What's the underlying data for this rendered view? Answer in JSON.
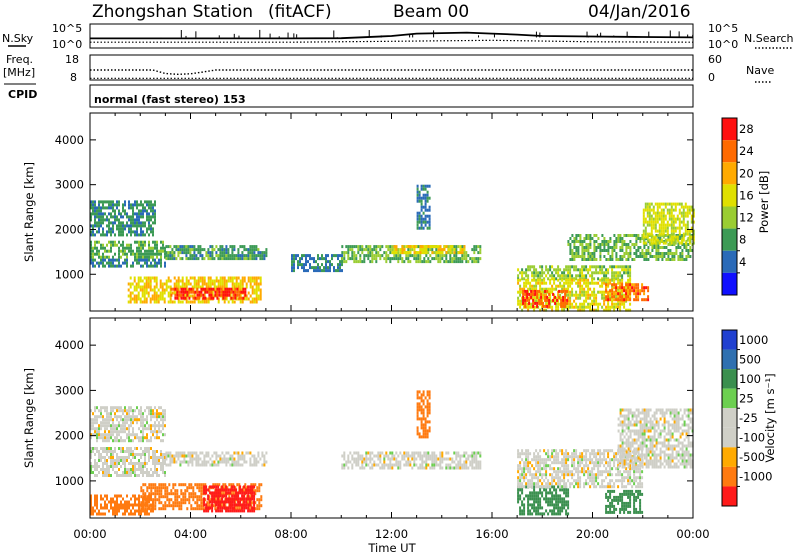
{
  "header": {
    "station": "Zhongshan Station",
    "mode": "(fitACF)",
    "beam": "Beam 00",
    "date": "04/Jan/2016"
  },
  "noise_panel": {
    "left_label": "N.Sky",
    "right_label": "N.Search",
    "left_ticks": [
      "10^5",
      "10^0"
    ],
    "right_ticks": [
      "10^5",
      "10^0"
    ]
  },
  "freq_panel": {
    "left_label_1": "Freq.",
    "left_label_2": "[MHz]",
    "right_label": "Nave",
    "left_ticks": [
      "18",
      "8"
    ],
    "right_ticks": [
      "60",
      "0"
    ]
  },
  "cpid": {
    "label": "CPID",
    "text": "normal (fast stereo) 153"
  },
  "power_colorbar": {
    "title": "Power [dB]",
    "labels": [
      "28",
      "24",
      "20",
      "16",
      "12",
      "8",
      "4"
    ],
    "colors": [
      "#ff1010",
      "#ff6a00",
      "#ffaa00",
      "#e0e000",
      "#9acd32",
      "#3c9a55",
      "#2a6ab8",
      "#1010ff"
    ]
  },
  "velocity_colorbar": {
    "title": "Velocity [m s⁻¹]",
    "labels": [
      "1000",
      "500",
      "100",
      "25",
      "-25",
      "-100",
      "-500",
      "-1000"
    ],
    "colors": [
      "#2040d0",
      "#2f70b0",
      "#3a8f4e",
      "#6ccf50",
      "#cfcfc7",
      "#cfcfc7",
      "#ffaa00",
      "#ff7a10",
      "#ff1a1a"
    ]
  },
  "axes": {
    "ylabel": "Slant Range [km]",
    "xlabel": "Time UT",
    "y_ticks": [
      "1000",
      "2000",
      "3000",
      "4000"
    ],
    "x_ticks": [
      "00:00",
      "04:00",
      "08:00",
      "12:00",
      "16:00",
      "20:00",
      "00:00"
    ]
  },
  "chart_data": [
    {
      "type": "heatmap",
      "name": "power",
      "xlabel": "Time UT",
      "ylabel": "Slant Range [km]",
      "xlim": [
        0,
        24
      ],
      "ylim": [
        180,
        4600
      ],
      "colorbar_title": "Power [dB]",
      "color_range": [
        0,
        30
      ],
      "regions": [
        {
          "t": [
            0.0,
            2.6
          ],
          "r": [
            1900,
            2650
          ],
          "value": 7
        },
        {
          "t": [
            0.0,
            3.0
          ],
          "r": [
            1350,
            1750
          ],
          "value": 9
        },
        {
          "t": [
            0.0,
            3.0
          ],
          "r": [
            1150,
            1350
          ],
          "value": 6
        },
        {
          "t": [
            1.5,
            6.8
          ],
          "r": [
            400,
            950
          ],
          "value": 18
        },
        {
          "t": [
            3.2,
            6.2
          ],
          "r": [
            450,
            700
          ],
          "value": 27
        },
        {
          "t": [
            3.0,
            7.0
          ],
          "r": [
            1350,
            1650
          ],
          "value": 8
        },
        {
          "t": [
            8.0,
            10.0
          ],
          "r": [
            1100,
            1450
          ],
          "value": 6
        },
        {
          "t": [
            10.0,
            15.5
          ],
          "r": [
            1300,
            1650
          ],
          "value": 10
        },
        {
          "t": [
            12.0,
            15.0
          ],
          "r": [
            1450,
            1650
          ],
          "value": 17
        },
        {
          "t": [
            13.0,
            13.5
          ],
          "r": [
            2000,
            3000
          ],
          "value": 5
        },
        {
          "t": [
            17.0,
            21.5
          ],
          "r": [
            900,
            1200
          ],
          "value": 12
        },
        {
          "t": [
            17.0,
            21.5
          ],
          "r": [
            200,
            900
          ],
          "value": 16
        },
        {
          "t": [
            17.2,
            19.0
          ],
          "r": [
            250,
            650
          ],
          "value": 25
        },
        {
          "t": [
            20.5,
            22.2
          ],
          "r": [
            400,
            800
          ],
          "value": 24
        },
        {
          "t": [
            19.0,
            24.0
          ],
          "r": [
            1300,
            1900
          ],
          "value": 10
        },
        {
          "t": [
            22.0,
            24.0
          ],
          "r": [
            1700,
            2600
          ],
          "value": 15
        }
      ]
    },
    {
      "type": "heatmap",
      "name": "velocity",
      "xlabel": "Time UT",
      "ylabel": "Slant Range [km]",
      "xlim": [
        0,
        24
      ],
      "ylim": [
        180,
        4600
      ],
      "colorbar_title": "Velocity [m s⁻¹]",
      "color_levels": [
        -1000,
        -500,
        -100,
        -25,
        25,
        100,
        500,
        1000
      ],
      "regions": [
        {
          "t": [
            0.0,
            3.0
          ],
          "r": [
            1900,
            2650
          ],
          "value": 0
        },
        {
          "t": [
            0.0,
            3.0
          ],
          "r": [
            1150,
            1750
          ],
          "value": 0
        },
        {
          "t": [
            2.0,
            6.8
          ],
          "r": [
            400,
            950
          ],
          "value": -250
        },
        {
          "t": [
            4.5,
            6.5
          ],
          "r": [
            350,
            900
          ],
          "value": -600
        },
        {
          "t": [
            0.0,
            2.5
          ],
          "r": [
            250,
            700
          ],
          "value": -150
        },
        {
          "t": [
            3.0,
            7.0
          ],
          "r": [
            1350,
            1650
          ],
          "value": 0
        },
        {
          "t": [
            10.0,
            15.5
          ],
          "r": [
            1300,
            1650
          ],
          "value": 0
        },
        {
          "t": [
            13.0,
            13.5
          ],
          "r": [
            2000,
            3000
          ],
          "value": -150
        },
        {
          "t": [
            17.0,
            19.0
          ],
          "r": [
            300,
            900
          ],
          "value": 150
        },
        {
          "t": [
            17.0,
            22.0
          ],
          "r": [
            900,
            1700
          ],
          "value": 0
        },
        {
          "t": [
            20.5,
            22.0
          ],
          "r": [
            300,
            800
          ],
          "value": 300
        },
        {
          "t": [
            21.0,
            24.0
          ],
          "r": [
            1300,
            2600
          ],
          "value": 0
        }
      ]
    },
    {
      "type": "line",
      "name": "noise",
      "xlim": [
        0,
        24
      ],
      "series": [
        {
          "name": "N.Sky",
          "x": [
            0,
            2,
            4,
            6,
            8,
            10,
            12,
            13,
            14,
            15,
            16,
            17,
            18,
            20,
            22,
            24
          ],
          "y_log10": [
            2.0,
            2.0,
            2.0,
            2.0,
            2.0,
            2.05,
            2.5,
            3.0,
            3.1,
            3.2,
            3.0,
            2.8,
            2.5,
            2.4,
            2.3,
            2.2
          ]
        },
        {
          "name": "N.Search",
          "x": [
            0,
            4,
            8,
            12,
            16,
            20,
            24
          ],
          "y_log10": [
            1.2,
            1.2,
            1.2,
            1.4,
            1.6,
            1.3,
            1.2
          ]
        }
      ]
    },
    {
      "type": "line",
      "name": "freq",
      "xlim": [
        0,
        24
      ],
      "series": [
        {
          "name": "Freq.",
          "x": [
            0,
            2.5,
            3.0,
            3.5,
            4.0,
            4.5,
            5.0,
            6.0,
            24
          ],
          "y": [
            12.0,
            12.0,
            10.6,
            10.3,
            10.5,
            11.2,
            12.0,
            12.0,
            12.0
          ]
        },
        {
          "name": "Nave",
          "x": [
            0,
            24
          ],
          "y": [
            4,
            4
          ]
        }
      ]
    }
  ]
}
